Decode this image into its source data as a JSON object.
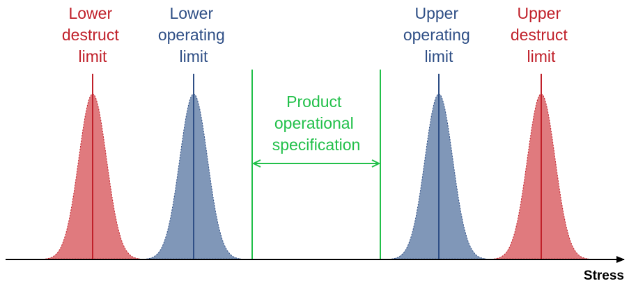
{
  "colors": {
    "destruct": "#c0202a",
    "destruct_fill": "#e07a7e",
    "operating": "#2f4f86",
    "operating_fill": "#8097b8",
    "spec": "#22c04a",
    "axis": "#000000"
  },
  "labels": {
    "lower_destruct": [
      "Lower",
      "destruct",
      "limit"
    ],
    "lower_operating": [
      "Lower",
      "operating",
      "limit"
    ],
    "upper_operating": [
      "Upper",
      "operating",
      "limit"
    ],
    "upper_destruct": [
      "Upper",
      "destruct",
      "limit"
    ],
    "spec": [
      "Product",
      "operational",
      "specification"
    ],
    "axis": "Stress"
  },
  "icons": {
    "axis_arrow": "right-arrow-icon",
    "spec_arrow": "double-headed-arrow-icon"
  }
}
